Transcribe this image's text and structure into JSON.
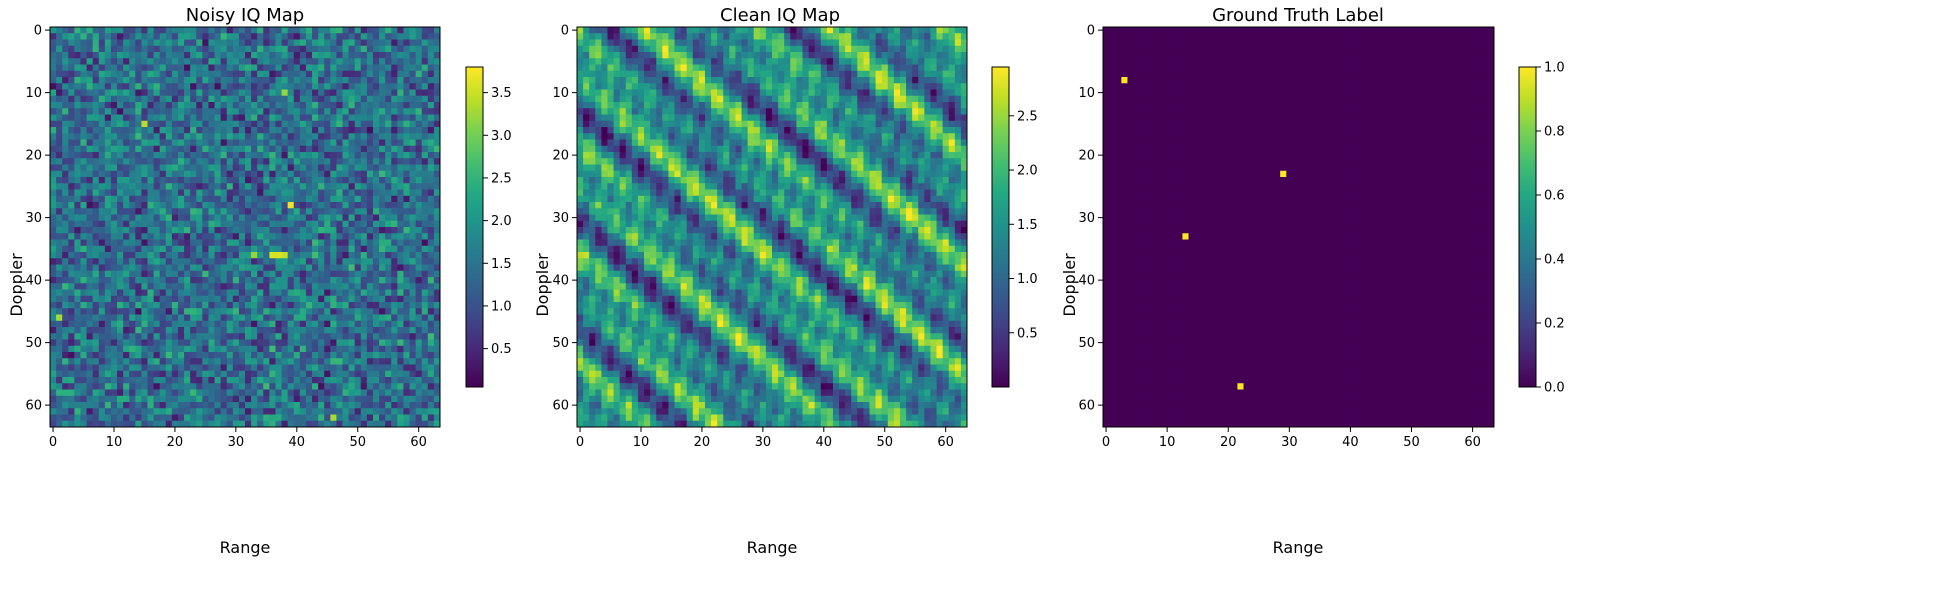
{
  "chart_data": [
    {
      "type": "heatmap",
      "title": "Noisy IQ Map",
      "xlabel": "Range",
      "ylabel": "Doppler",
      "rows": 64,
      "cols": 64,
      "xticks": [
        0,
        10,
        20,
        30,
        40,
        50,
        60
      ],
      "yticks": [
        0,
        10,
        20,
        30,
        40,
        50,
        60
      ],
      "colormap": "viridis",
      "color_range": [
        0.05,
        3.8
      ],
      "colorbar_ticks": [
        0.5,
        1.0,
        1.5,
        2.0,
        2.5,
        3.0,
        3.5
      ],
      "colorbar_tick_labels": [
        "0.5",
        "1.0",
        "1.5",
        "2.0",
        "2.5",
        "3.0",
        "3.5"
      ],
      "data_description": "noisy speckle, values mostly 0.5-2.5 with a few hot cells",
      "hotspots": [
        {
          "x": 15,
          "y": 15,
          "value": 3.4
        },
        {
          "x": 38,
          "y": 10,
          "value": 3.2
        },
        {
          "x": 39,
          "y": 28,
          "value": 3.7
        },
        {
          "x": 36,
          "y": 36,
          "value": 3.6
        },
        {
          "x": 37,
          "y": 36,
          "value": 3.6
        },
        {
          "x": 38,
          "y": 36,
          "value": 3.5
        },
        {
          "x": 33,
          "y": 36,
          "value": 3.2
        },
        {
          "x": 1,
          "y": 46,
          "value": 3.3
        },
        {
          "x": 46,
          "y": 62,
          "value": 3.3
        }
      ]
    },
    {
      "type": "heatmap",
      "title": "Clean IQ Map",
      "xlabel": "Range",
      "ylabel": "Doppler",
      "rows": 64,
      "cols": 64,
      "xticks": [
        0,
        10,
        20,
        30,
        40,
        50,
        60
      ],
      "yticks": [
        0,
        10,
        20,
        30,
        40,
        50,
        60
      ],
      "colormap": "viridis",
      "color_range": [
        0.0,
        2.95
      ],
      "colorbar_ticks": [
        0.5,
        1.0,
        1.5,
        2.0,
        2.5
      ],
      "colorbar_tick_labels": [
        "0.5",
        "1.0",
        "1.5",
        "2.0",
        "2.5"
      ],
      "data_description": "superposition of tones producing diagonal stripes running down-right"
    },
    {
      "type": "heatmap",
      "title": "Ground Truth Label",
      "xlabel": "Range",
      "ylabel": "Doppler",
      "rows": 64,
      "cols": 64,
      "xticks": [
        0,
        10,
        20,
        30,
        40,
        50,
        60
      ],
      "yticks": [
        0,
        10,
        20,
        30,
        40,
        50,
        60
      ],
      "colormap": "viridis",
      "color_range": [
        0.0,
        1.0
      ],
      "colorbar_ticks": [
        0.0,
        0.2,
        0.4,
        0.6,
        0.8,
        1.0
      ],
      "colorbar_tick_labels": [
        "0.0",
        "0.2",
        "0.4",
        "0.6",
        "0.8",
        "1.0"
      ],
      "background_value": 0,
      "targets": [
        {
          "x": 3,
          "y": 8,
          "value": 1
        },
        {
          "x": 29,
          "y": 23,
          "value": 1
        },
        {
          "x": 13,
          "y": 33,
          "value": 1
        },
        {
          "x": 22,
          "y": 57,
          "value": 1
        }
      ]
    }
  ]
}
